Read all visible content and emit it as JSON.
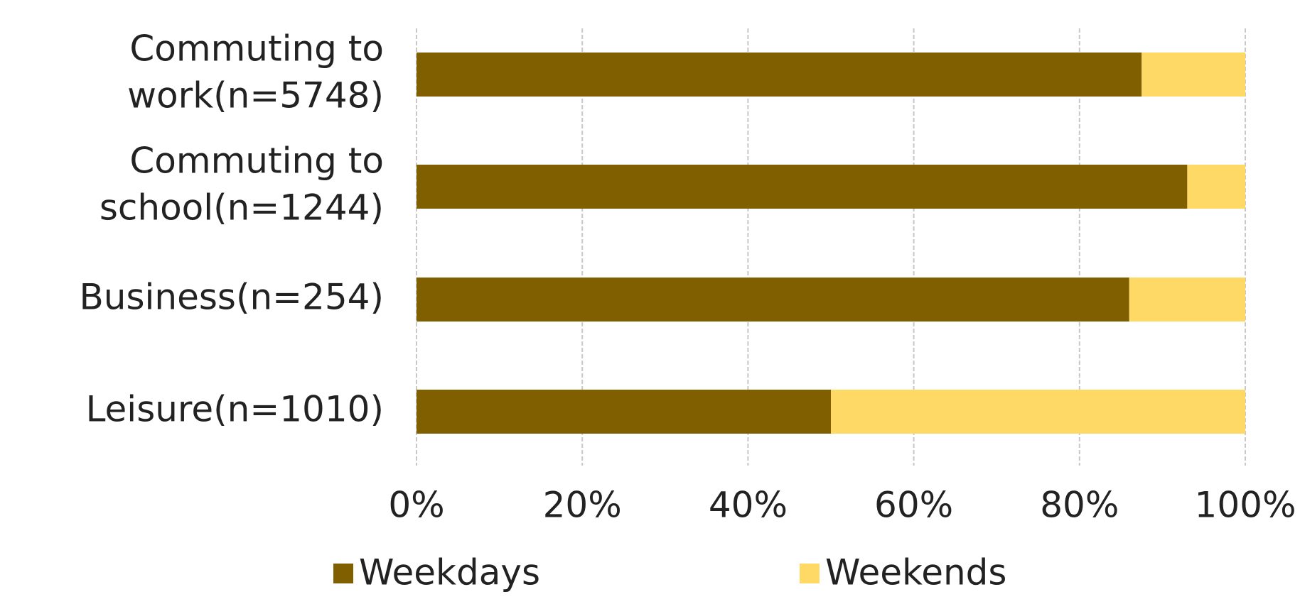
{
  "chart_data": {
    "type": "stacked-barh",
    "categories": [
      [
        "Commuting to",
        "work(n=5748)"
      ],
      [
        "Commuting to",
        "school(n=1244)"
      ],
      [
        "Business(n=254)"
      ],
      [
        "Leisure(n=1010)"
      ]
    ],
    "series": [
      {
        "name": "Weekdays",
        "color": "#7f5f00",
        "values": [
          87.5,
          93,
          86,
          50
        ]
      },
      {
        "name": "Weekends",
        "color": "#ffd966",
        "values": [
          12.5,
          7,
          14,
          50
        ]
      }
    ],
    "xlim": [
      0,
      100
    ],
    "xticks": [
      {
        "value": 0,
        "label": "0%"
      },
      {
        "value": 20,
        "label": "20%"
      },
      {
        "value": 40,
        "label": "40%"
      },
      {
        "value": 60,
        "label": "60%"
      },
      {
        "value": 80,
        "label": "80%"
      },
      {
        "value": 100,
        "label": "100%"
      }
    ],
    "grid": true,
    "legend": "bottom"
  }
}
